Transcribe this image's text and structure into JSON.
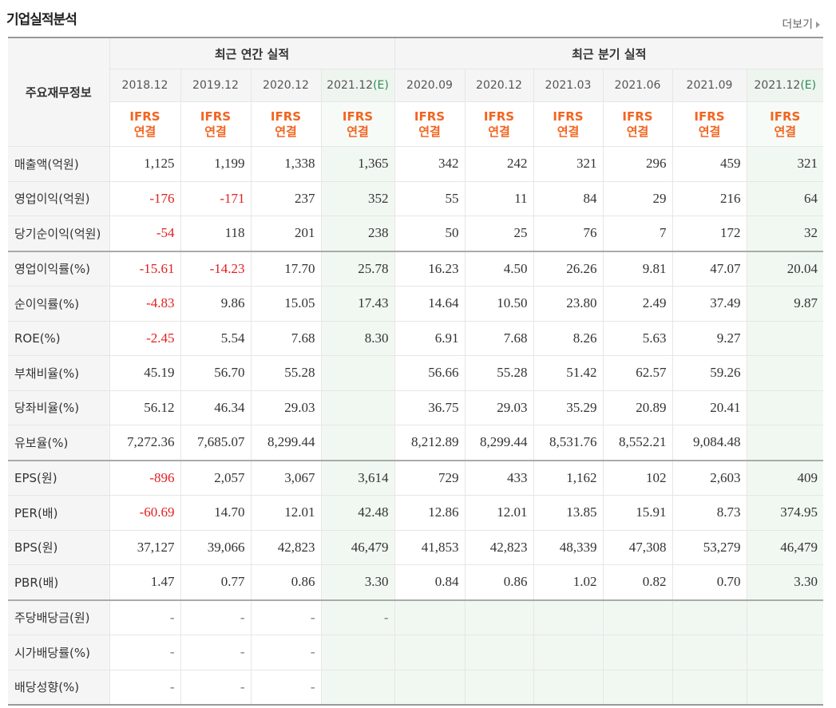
{
  "title": "기업실적분석",
  "more_label": "더보기",
  "header": {
    "main_label": "주요재무정보",
    "annual_label": "최근 연간 실적",
    "quarter_label": "최근 분기 실적",
    "periods": [
      {
        "label": "2018.12",
        "est": ""
      },
      {
        "label": "2019.12",
        "est": ""
      },
      {
        "label": "2020.12",
        "est": ""
      },
      {
        "label": "2021.12",
        "est": "(E)"
      },
      {
        "label": "2020.09",
        "est": ""
      },
      {
        "label": "2020.12",
        "est": ""
      },
      {
        "label": "2021.03",
        "est": ""
      },
      {
        "label": "2021.06",
        "est": ""
      },
      {
        "label": "2021.09",
        "est": ""
      },
      {
        "label": "2021.12",
        "est": "(E)"
      }
    ],
    "ifrs_line1": "IFRS",
    "ifrs_line2": "연결"
  },
  "rows": [
    {
      "label": "매출액(억원)",
      "values": [
        "1,125",
        "1,199",
        "1,338",
        "1,365",
        "342",
        "242",
        "321",
        "296",
        "459",
        "321"
      ]
    },
    {
      "label": "영업이익(억원)",
      "values": [
        "-176",
        "-171",
        "237",
        "352",
        "55",
        "11",
        "84",
        "29",
        "216",
        "64"
      ]
    },
    {
      "label": "당기순이익(억원)",
      "values": [
        "-54",
        "118",
        "201",
        "238",
        "50",
        "25",
        "76",
        "7",
        "172",
        "32"
      ]
    },
    {
      "label": "영업이익률(%)",
      "values": [
        "-15.61",
        "-14.23",
        "17.70",
        "25.78",
        "16.23",
        "4.50",
        "26.26",
        "9.81",
        "47.07",
        "20.04"
      ],
      "sep": true
    },
    {
      "label": "순이익률(%)",
      "values": [
        "-4.83",
        "9.86",
        "15.05",
        "17.43",
        "14.64",
        "10.50",
        "23.80",
        "2.49",
        "37.49",
        "9.87"
      ]
    },
    {
      "label": "ROE(%)",
      "values": [
        "-2.45",
        "5.54",
        "7.68",
        "8.30",
        "6.91",
        "7.68",
        "8.26",
        "5.63",
        "9.27",
        ""
      ]
    },
    {
      "label": "부채비율(%)",
      "values": [
        "45.19",
        "56.70",
        "55.28",
        "",
        "56.66",
        "55.28",
        "51.42",
        "62.57",
        "59.26",
        ""
      ]
    },
    {
      "label": "당좌비율(%)",
      "values": [
        "56.12",
        "46.34",
        "29.03",
        "",
        "36.75",
        "29.03",
        "35.29",
        "20.89",
        "20.41",
        ""
      ]
    },
    {
      "label": "유보율(%)",
      "values": [
        "7,272.36",
        "7,685.07",
        "8,299.44",
        "",
        "8,212.89",
        "8,299.44",
        "8,531.76",
        "8,552.21",
        "9,084.48",
        ""
      ]
    },
    {
      "label": "EPS(원)",
      "values": [
        "-896",
        "2,057",
        "3,067",
        "3,614",
        "729",
        "433",
        "1,162",
        "102",
        "2,603",
        "409"
      ],
      "sep": true
    },
    {
      "label": "PER(배)",
      "values": [
        "-60.69",
        "14.70",
        "12.01",
        "42.48",
        "12.86",
        "12.01",
        "13.85",
        "15.91",
        "8.73",
        "374.95"
      ]
    },
    {
      "label": "BPS(원)",
      "values": [
        "37,127",
        "39,066",
        "42,823",
        "46,479",
        "41,853",
        "42,823",
        "48,339",
        "47,308",
        "53,279",
        "46,479"
      ]
    },
    {
      "label": "PBR(배)",
      "values": [
        "1.47",
        "0.77",
        "0.86",
        "3.30",
        "0.84",
        "0.86",
        "1.02",
        "0.82",
        "0.70",
        "3.30"
      ]
    },
    {
      "label": "주당배당금(원)",
      "values": [
        "-",
        "-",
        "-",
        "-",
        "",
        "",
        "",
        "",
        "",
        ""
      ],
      "sep": true,
      "gray_quarters": true
    },
    {
      "label": "시가배당률(%)",
      "values": [
        "-",
        "-",
        "-",
        "",
        "",
        "",
        "",
        "",
        "",
        ""
      ],
      "gray_quarters": true
    },
    {
      "label": "배당성향(%)",
      "values": [
        "-",
        "-",
        "-",
        "",
        "",
        "",
        "",
        "",
        "",
        ""
      ],
      "gray_quarters": true
    }
  ],
  "colors": {
    "negative": "#e02020",
    "ifrs": "#f26522",
    "estimate_bg": "#f1f8f1",
    "estimate_mark": "#2e8b57"
  }
}
